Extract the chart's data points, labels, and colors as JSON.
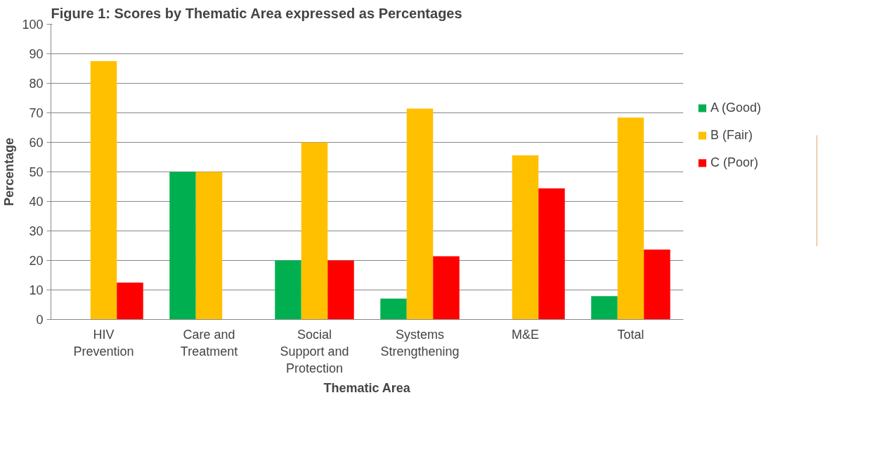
{
  "chart_data": {
    "type": "bar",
    "title": "Figure 1: Scores by Thematic Area expressed as Percentages",
    "xlabel": "Thematic Area",
    "ylabel": "Percentage",
    "categories": [
      "HIV Prevention",
      "Care and Treatment",
      "Social Support and Protection",
      "Systems Strengthening",
      "M&E",
      "Total"
    ],
    "series": [
      {
        "name": "A (Good)",
        "color": "#00b050",
        "values": [
          0,
          50,
          20,
          7.1,
          0,
          7.9
        ]
      },
      {
        "name": "B (Fair)",
        "color": "#ffc000",
        "values": [
          87.5,
          50,
          60,
          71.4,
          55.6,
          68.4
        ]
      },
      {
        "name": "C (Poor)",
        "color": "#ff0000",
        "values": [
          12.5,
          0,
          20,
          21.4,
          44.4,
          23.7
        ]
      }
    ],
    "ylim": [
      0,
      100
    ],
    "yticks": [
      0,
      10,
      20,
      30,
      40,
      50,
      60,
      70,
      80,
      90,
      100
    ],
    "grid": "y",
    "legend": "right"
  }
}
